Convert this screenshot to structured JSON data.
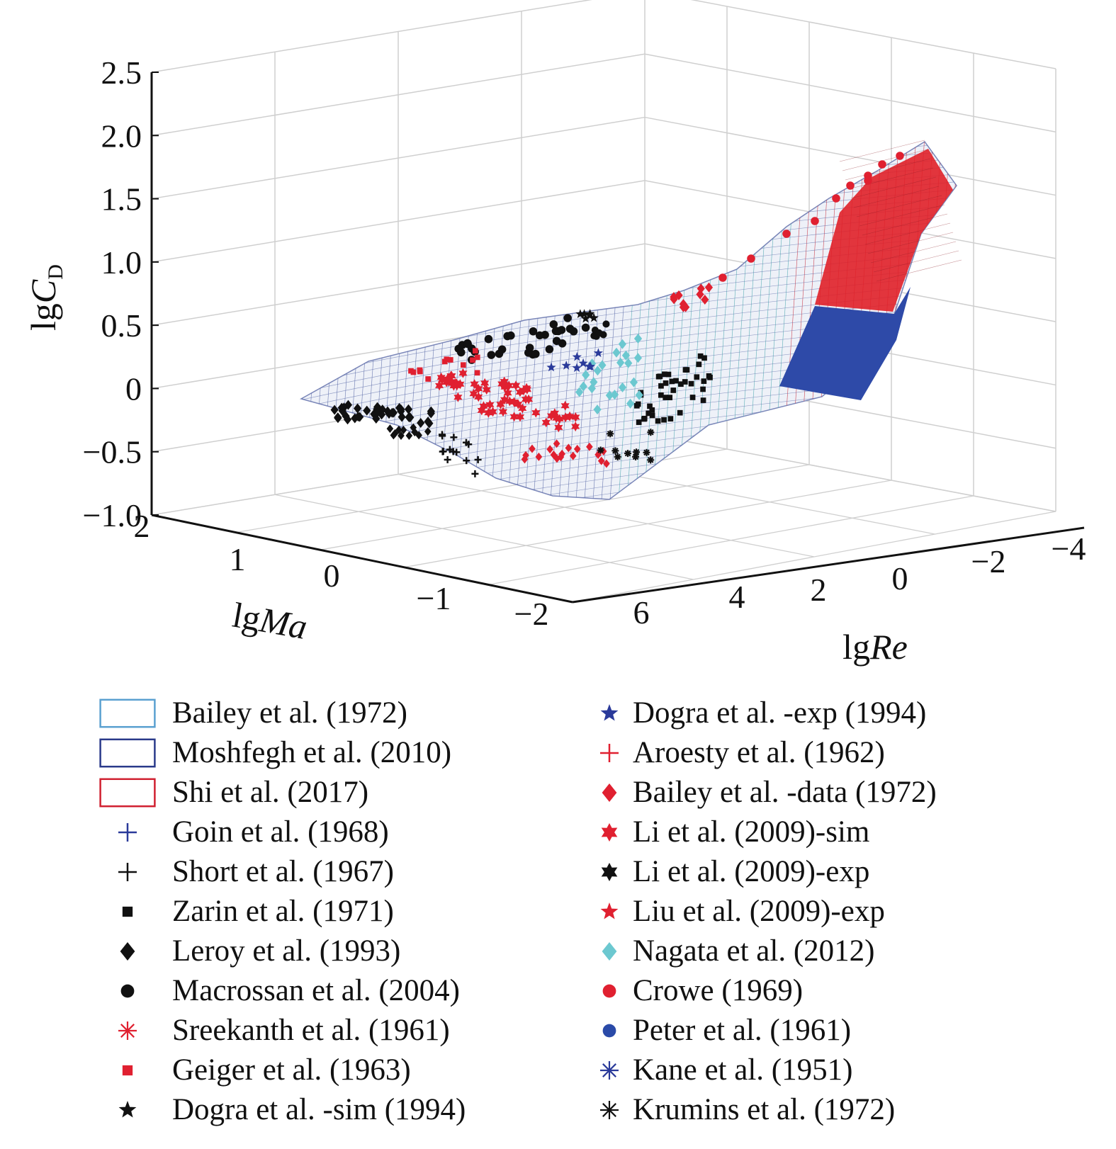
{
  "chart_data": {
    "type": "scatter",
    "subtype": "3d-surface-with-scatter",
    "axes": {
      "z": {
        "label_base": "lg",
        "label_var": "C",
        "label_sub": "D",
        "ticks": [
          "2.5",
          "2.0",
          "1.5",
          "1.0",
          "0.5",
          "0",
          "−0.5",
          "−1.0"
        ],
        "range": [
          -1.0,
          2.5
        ]
      },
      "ma": {
        "label_base": "lg",
        "label_var": "Ma",
        "ticks": [
          "2",
          "1",
          "0",
          "−1",
          "−2"
        ],
        "range": [
          2,
          -2
        ]
      },
      "re": {
        "label_base": "lg",
        "label_var": "Re",
        "ticks": [
          "6",
          "4",
          "2",
          "0",
          "−2",
          "−4"
        ],
        "range": [
          6,
          -4
        ]
      }
    },
    "legend": {
      "left": [
        {
          "label": "Bailey et al. (1972)",
          "marker": "box",
          "color": "#5aa0d0"
        },
        {
          "label": "Moshfegh et al. (2010)",
          "marker": "box",
          "color": "#2a3a8a"
        },
        {
          "label": "Shi et al. (2017)",
          "marker": "box",
          "color": "#d02030"
        },
        {
          "label": "Goin et al. (1968)",
          "marker": "plus",
          "color": "#2a3a9a"
        },
        {
          "label": "Short et al. (1967)",
          "marker": "plus",
          "color": "#111111"
        },
        {
          "label": "Zarin et al. (1971)",
          "marker": "square",
          "color": "#111111"
        },
        {
          "label": "Leroy et al. (1993)",
          "marker": "diamond",
          "color": "#111111"
        },
        {
          "label": "Macrossan et al. (2004)",
          "marker": "circle",
          "color": "#111111"
        },
        {
          "label": "Sreekanth et al. (1961)",
          "marker": "asterisk",
          "color": "#e02030"
        },
        {
          "label": "Geiger et al. (1963)",
          "marker": "square",
          "color": "#e02030"
        },
        {
          "label": "Dogra et al. -sim (1994)",
          "marker": "star",
          "color": "#111111"
        }
      ],
      "right": [
        {
          "label": "Dogra et al. -exp (1994)",
          "marker": "star",
          "color": "#2a3a9a"
        },
        {
          "label": "Aroesty et al. (1962)",
          "marker": "plus",
          "color": "#e02030"
        },
        {
          "label": "Bailey et al. -data (1972)",
          "marker": "diamond",
          "color": "#e02030"
        },
        {
          "label": "Li et al. (2009)-sim",
          "marker": "hexstar",
          "color": "#e02030"
        },
        {
          "label": "Li et al. (2009)-exp",
          "marker": "hexstar",
          "color": "#111111"
        },
        {
          "label": "Liu et al. (2009)-exp",
          "marker": "star",
          "color": "#e02030"
        },
        {
          "label": "Nagata et al. (2012)",
          "marker": "diamond",
          "color": "#6cc8d0"
        },
        {
          "label": "Crowe (1969)",
          "marker": "circle",
          "color": "#e02030"
        },
        {
          "label": "Peter et al. (1961)",
          "marker": "circle",
          "color": "#2a4aa8"
        },
        {
          "label": "Kane et al. (1951)",
          "marker": "asterisk",
          "color": "#2a3a9a"
        },
        {
          "label": "Krumins et al. (1972)",
          "marker": "asterisk",
          "color": "#111111"
        }
      ]
    },
    "colors": {
      "mesh_light": "#5a6aa8",
      "mesh_teal": "#4aa8b0",
      "mesh_red": "#c83040",
      "solid_red": "#e02028",
      "solid_blue": "#2e4aa8",
      "grid": "#cfcfcf"
    }
  }
}
